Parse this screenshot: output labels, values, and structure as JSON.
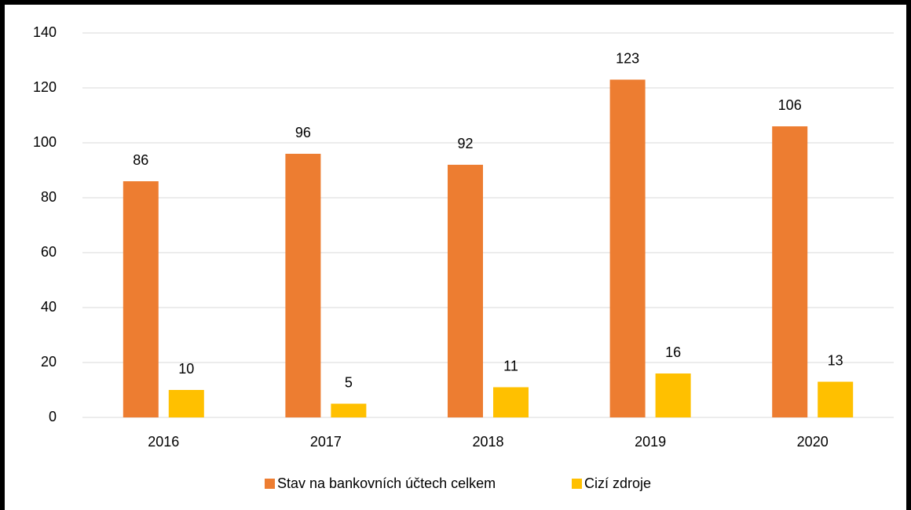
{
  "chart_data": {
    "type": "bar",
    "categories": [
      "2016",
      "2017",
      "2018",
      "2019",
      "2020"
    ],
    "series": [
      {
        "name": "Stav na bankovních účtech celkem",
        "color": "#ED7D31",
        "values": [
          86,
          96,
          92,
          123,
          106
        ]
      },
      {
        "name": "Cizí zdroje",
        "color": "#FFC000",
        "values": [
          10,
          5,
          11,
          16,
          13
        ]
      }
    ],
    "ylim": [
      0,
      140
    ],
    "yticks": [
      0,
      20,
      40,
      60,
      80,
      100,
      120,
      140
    ],
    "grid": true,
    "legend": "bottom"
  }
}
